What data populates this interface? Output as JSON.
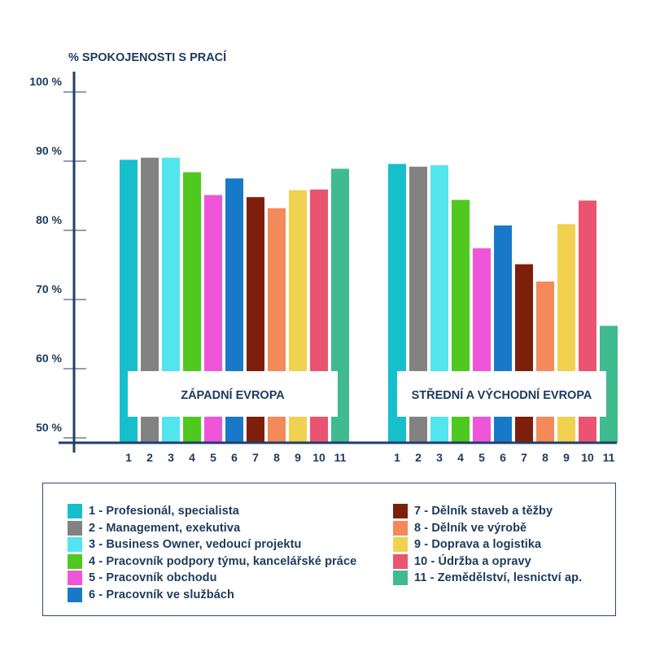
{
  "chart_data": {
    "type": "bar",
    "ylabel": "% SPOKOJENOSTI S PRACÍ",
    "ylim": [
      50,
      100
    ],
    "yticks": [
      "50 %",
      "60 %",
      "70 %",
      "80 %",
      "90 %",
      "100 %"
    ],
    "ytick_values": [
      50,
      60,
      70,
      80,
      90,
      100
    ],
    "grid": false,
    "categories": [
      "1",
      "2",
      "3",
      "4",
      "5",
      "6",
      "7",
      "8",
      "9",
      "10",
      "11"
    ],
    "groups": [
      {
        "name": "ZÁPADNÍ EVROPA",
        "values": [
          90.2,
          90.5,
          90.5,
          88.4,
          85.1,
          87.5,
          84.8,
          83.2,
          85.8,
          85.9,
          88.9
        ]
      },
      {
        "name": "STŘEDNÍ A VÝCHODNÍ EVROPA",
        "values": [
          89.6,
          89.2,
          89.4,
          84.4,
          77.4,
          80.7,
          75.1,
          72.6,
          80.9,
          84.3,
          66.2
        ]
      }
    ],
    "colors": [
      "#17bfcc",
      "#828282",
      "#52e5ee",
      "#4fc820",
      "#ef55d9",
      "#1979c9",
      "#7d1f0b",
      "#f4895a",
      "#f0d250",
      "#ea5470",
      "#3fbb8f"
    ],
    "legend": [
      "1 - Profesionál, specialista",
      "2 - Management, exekutiva",
      "3 - Business Owner, vedoucí projektu",
      "4 - Pracovník podpory týmu, kancelářské práce",
      "5 - Pracovník obchodu",
      "6 - Pracovník ve službách",
      "7 - Dělník staveb a těžby",
      "8 - Dělník ve výrobě",
      "9 - Doprava a logistika",
      "10 - Údržba a opravy",
      "11 - Zemědělství, lesnictví ap."
    ]
  }
}
